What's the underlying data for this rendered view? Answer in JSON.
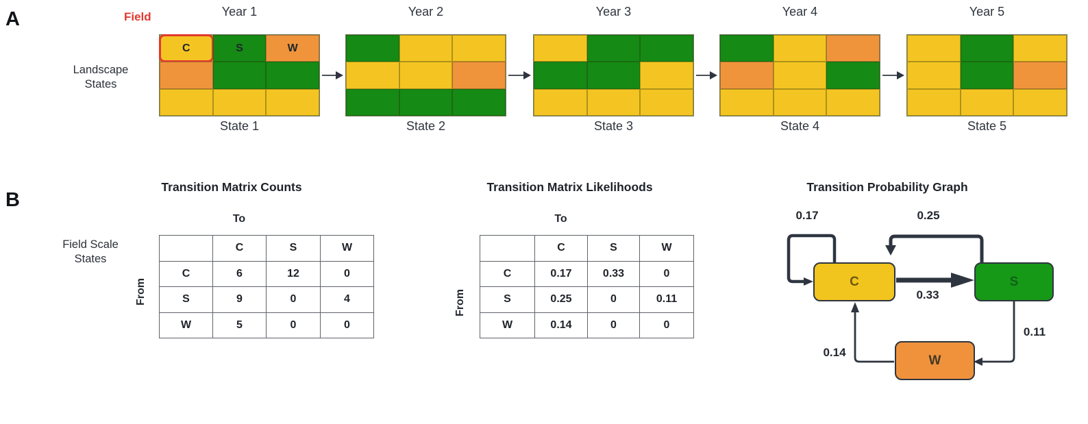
{
  "panel_a": {
    "label": "A",
    "field_label": "Field",
    "side_label": "Landscape States",
    "crop_colors": {
      "C": "#F4C522",
      "S": "#158A15",
      "W": "#F0943C"
    },
    "highlight_color": "#E2392E",
    "years": [
      {
        "year_label": "Year 1",
        "state_label": "State 1",
        "cells": [
          "C",
          "S",
          "W",
          "W",
          "S",
          "S",
          "C",
          "C",
          "C"
        ],
        "cell_labels": [
          "C",
          "S",
          "W",
          "",
          "",
          "",
          "",
          "",
          ""
        ],
        "highlight_cell": 0
      },
      {
        "year_label": "Year 2",
        "state_label": "State 2",
        "cells": [
          "S",
          "C",
          "C",
          "C",
          "C",
          "W",
          "S",
          "S",
          "S"
        ]
      },
      {
        "year_label": "Year 3",
        "state_label": "State 3",
        "cells": [
          "C",
          "S",
          "S",
          "S",
          "S",
          "C",
          "C",
          "C",
          "C"
        ]
      },
      {
        "year_label": "Year 4",
        "state_label": "State 4",
        "cells": [
          "S",
          "C",
          "W",
          "W",
          "C",
          "S",
          "C",
          "C",
          "C"
        ]
      },
      {
        "year_label": "Year 5",
        "state_label": "State 5",
        "cells": [
          "C",
          "S",
          "C",
          "C",
          "S",
          "W",
          "C",
          "C",
          "C"
        ]
      }
    ]
  },
  "panel_b": {
    "label": "B",
    "side_label": "Field Scale States",
    "counts": {
      "title": "Transition Matrix Counts",
      "to_label": "To",
      "from_label": "From",
      "col_headers": [
        "C",
        "S",
        "W"
      ],
      "rows": [
        {
          "label": "C",
          "values": [
            "6",
            "12",
            "0"
          ]
        },
        {
          "label": "S",
          "values": [
            "9",
            "0",
            "4"
          ]
        },
        {
          "label": "W",
          "values": [
            "5",
            "0",
            "0"
          ]
        }
      ]
    },
    "likelihoods": {
      "title": "Transition Matrix Likelihoods",
      "to_label": "To",
      "from_label": "From",
      "col_headers": [
        "C",
        "S",
        "W"
      ],
      "rows": [
        {
          "label": "C",
          "values": [
            "0.17",
            "0.33",
            "0"
          ]
        },
        {
          "label": "S",
          "values": [
            "0.25",
            "0",
            "0.11"
          ]
        },
        {
          "label": "W",
          "values": [
            "0.14",
            "0",
            "0"
          ]
        }
      ]
    },
    "graph": {
      "title": "Transition Probability Graph",
      "nodes": [
        {
          "label": "C",
          "fill": "#F2C41E",
          "text_color": "#6B5A10"
        },
        {
          "label": "S",
          "fill": "#169916",
          "text_color": "#11611A"
        },
        {
          "label": "W",
          "fill": "#F0923C",
          "text_color": "#463826"
        }
      ],
      "edge_labels": {
        "c_self": "0.17",
        "s_to_c": "0.25",
        "c_to_s": "0.33",
        "s_to_w": "0.11",
        "w_to_c": "0.14"
      }
    }
  }
}
